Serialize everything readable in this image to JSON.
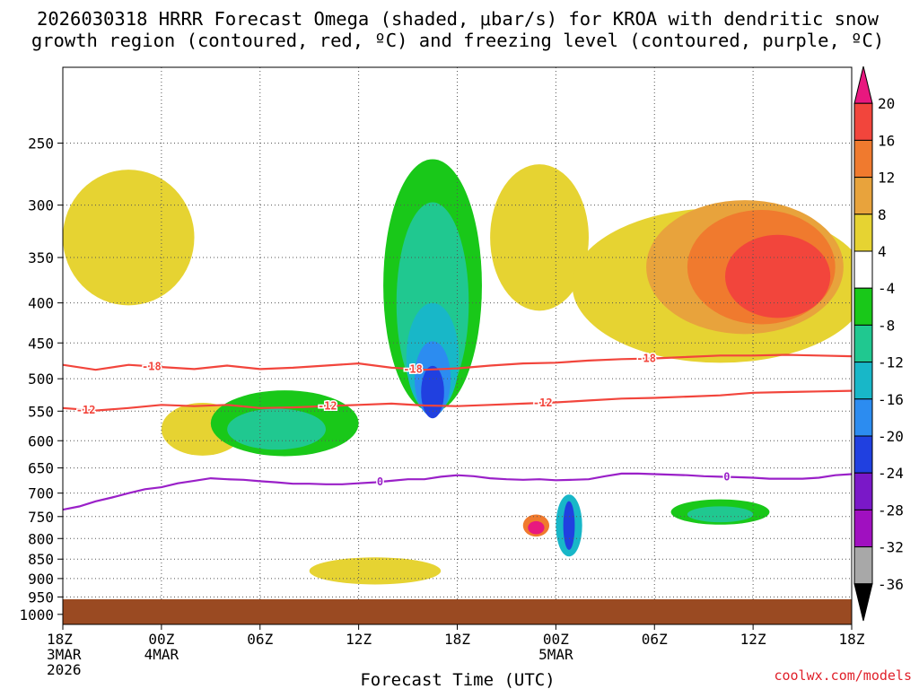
{
  "chart_data": {
    "type": "heatmap",
    "title_line1": "2026030318 HRRR Forecast Omega (shaded, μbar/s) for KROA with dendritic snow",
    "title_line2": "growth region (contoured, red, ºC) and freezing level (contoured, purple, ºC)",
    "xlabel": "Forecast Time (UTC)",
    "ylabel": "",
    "credit": "coolwx.com/models",
    "x_range_hours": [
      0,
      48
    ],
    "x_ticks": [
      {
        "hour": 0,
        "lines": [
          "18Z",
          "3MAR",
          "2026"
        ]
      },
      {
        "hour": 6,
        "lines": [
          "00Z",
          "4MAR"
        ]
      },
      {
        "hour": 12,
        "lines": [
          "06Z"
        ]
      },
      {
        "hour": 18,
        "lines": [
          "12Z"
        ]
      },
      {
        "hour": 24,
        "lines": [
          "18Z"
        ]
      },
      {
        "hour": 30,
        "lines": [
          "00Z",
          "5MAR"
        ]
      },
      {
        "hour": 36,
        "lines": [
          "06Z"
        ]
      },
      {
        "hour": 42,
        "lines": [
          "12Z"
        ]
      },
      {
        "hour": 48,
        "lines": [
          "18Z"
        ]
      }
    ],
    "y_axis": "pressure (hPa), log scale, inverted",
    "y_range": [
      200,
      1030
    ],
    "y_ticks": [
      250,
      300,
      350,
      400,
      450,
      500,
      550,
      600,
      650,
      700,
      750,
      800,
      850,
      900,
      950,
      1000
    ],
    "colorbar": {
      "labels": [
        "20",
        "16",
        "12",
        "8",
        "4",
        "-4",
        "-8",
        "-12",
        "-16",
        "-20",
        "-24",
        "-28",
        "-32",
        "-36"
      ],
      "bins": [
        {
          "range": "> 20",
          "color": "#e8187f"
        },
        {
          "range": "16 to 20",
          "color": "#f2453c"
        },
        {
          "range": "12 to 16",
          "color": "#f07a2e"
        },
        {
          "range": "8 to 12",
          "color": "#e8a33c"
        },
        {
          "range": "4 to 8",
          "color": "#e6d332"
        },
        {
          "range": "-4 to 4",
          "color": "#ffffff"
        },
        {
          "range": "-8 to -4",
          "color": "#19c819"
        },
        {
          "range": "-12 to -8",
          "color": "#20c890"
        },
        {
          "range": "-16 to -12",
          "color": "#18b7c8"
        },
        {
          "range": "-20 to -16",
          "color": "#2c8cf0"
        },
        {
          "range": "-24 to -20",
          "color": "#2040e0"
        },
        {
          "range": "-28 to -24",
          "color": "#7a18c8"
        },
        {
          "range": "-32 to -28",
          "color": "#a010c0"
        },
        {
          "range": "-36 to -32",
          "color": "#a8a8a8"
        },
        {
          "range": "< -36",
          "color": "#000000"
        }
      ]
    },
    "contours": [
      {
        "name": "dgz -18C",
        "label": "-18",
        "color": "#f2453c",
        "points": [
          [
            0,
            480
          ],
          [
            2,
            487
          ],
          [
            4,
            480
          ],
          [
            6,
            483
          ],
          [
            8,
            486
          ],
          [
            10,
            481
          ],
          [
            12,
            486
          ],
          [
            14,
            484
          ],
          [
            16,
            481
          ],
          [
            18,
            478
          ],
          [
            20,
            484
          ],
          [
            22,
            487
          ],
          [
            24,
            485
          ],
          [
            26,
            481
          ],
          [
            28,
            478
          ],
          [
            30,
            477
          ],
          [
            32,
            474
          ],
          [
            34,
            472
          ],
          [
            36,
            471
          ],
          [
            38,
            469
          ],
          [
            40,
            467
          ],
          [
            42,
            467
          ],
          [
            44,
            466
          ],
          [
            46,
            467
          ],
          [
            48,
            468
          ]
        ],
        "label_hours": [
          5.4,
          21.3,
          35.5
        ]
      },
      {
        "name": "dgz -12C",
        "label": "-12",
        "color": "#f2453c",
        "points": [
          [
            0,
            545
          ],
          [
            2,
            549
          ],
          [
            4,
            545
          ],
          [
            6,
            540
          ],
          [
            8,
            542
          ],
          [
            10,
            540
          ],
          [
            12,
            545
          ],
          [
            14,
            544
          ],
          [
            16,
            542
          ],
          [
            18,
            540
          ],
          [
            20,
            538
          ],
          [
            22,
            541
          ],
          [
            24,
            542
          ],
          [
            26,
            540
          ],
          [
            28,
            538
          ],
          [
            30,
            536
          ],
          [
            32,
            533
          ],
          [
            34,
            530
          ],
          [
            36,
            529
          ],
          [
            38,
            527
          ],
          [
            40,
            525
          ],
          [
            42,
            521
          ],
          [
            44,
            520
          ],
          [
            46,
            519
          ],
          [
            48,
            518
          ]
        ],
        "label_hours": [
          1.4,
          16.1,
          29.2
        ]
      },
      {
        "name": "freezing level 0C",
        "label": "0",
        "color": "#9a20c8",
        "points": [
          [
            0,
            735
          ],
          [
            1,
            728
          ],
          [
            2,
            717
          ],
          [
            3,
            709
          ],
          [
            4,
            700
          ],
          [
            5,
            692
          ],
          [
            6,
            688
          ],
          [
            7,
            680
          ],
          [
            8,
            675
          ],
          [
            9,
            670
          ],
          [
            10,
            672
          ],
          [
            11,
            673
          ],
          [
            12,
            676
          ],
          [
            13,
            678
          ],
          [
            14,
            681
          ],
          [
            15,
            681
          ],
          [
            16,
            682
          ],
          [
            17,
            682
          ],
          [
            18,
            680
          ],
          [
            19,
            678
          ],
          [
            20,
            675
          ],
          [
            21,
            672
          ],
          [
            22,
            672
          ],
          [
            23,
            667
          ],
          [
            24,
            664
          ],
          [
            25,
            666
          ],
          [
            26,
            670
          ],
          [
            27,
            672
          ],
          [
            28,
            673
          ],
          [
            29,
            672
          ],
          [
            30,
            674
          ],
          [
            31,
            673
          ],
          [
            32,
            672
          ],
          [
            33,
            666
          ],
          [
            34,
            661
          ],
          [
            35,
            661
          ],
          [
            36,
            662
          ],
          [
            37,
            663
          ],
          [
            38,
            664
          ],
          [
            39,
            666
          ],
          [
            40,
            667
          ],
          [
            41,
            668
          ],
          [
            42,
            669
          ],
          [
            43,
            671
          ],
          [
            44,
            671
          ],
          [
            45,
            671
          ],
          [
            46,
            669
          ],
          [
            47,
            664
          ],
          [
            48,
            662
          ]
        ],
        "label_hours": [
          19.3,
          40.4
        ]
      }
    ],
    "shaded_regions": [
      {
        "level": "4 to 8",
        "cx": 4,
        "p": 330,
        "rx": 4,
        "rh": 130
      },
      {
        "level": "4 to 8",
        "cx": 8.5,
        "p": 580,
        "rx": 2.5,
        "rh": 90
      },
      {
        "level": "4 to 8",
        "cx": 19,
        "p": 880,
        "rx": 4,
        "rh": 70
      },
      {
        "level": "4 to 8",
        "cx": 29,
        "p": 330,
        "rx": 3,
        "rh": 140
      },
      {
        "level": "4 to 8",
        "cx": 40,
        "p": 380,
        "rx": 9,
        "rh": 170
      },
      {
        "level": "8 to 12",
        "cx": 41.5,
        "p": 360,
        "rx": 6,
        "rh": 140
      },
      {
        "level": "12 to 16",
        "cx": 42.5,
        "p": 360,
        "rx": 4.5,
        "rh": 120
      },
      {
        "level": "16 to 20",
        "cx": 43.5,
        "p": 370,
        "rx": 3.2,
        "rh": 90
      },
      {
        "level": "-8 to -4",
        "cx": 22.5,
        "p": 380,
        "rx": 3,
        "rh": 270
      },
      {
        "level": "-12 to -8",
        "cx": 22.5,
        "p": 400,
        "rx": 2.2,
        "rh": 230
      },
      {
        "level": "-16 to -12",
        "cx": 22.5,
        "p": 470,
        "rx": 1.6,
        "rh": 150
      },
      {
        "level": "-20 to -16",
        "cx": 22.5,
        "p": 500,
        "rx": 1.1,
        "rh": 110
      },
      {
        "level": "-24 to -20",
        "cx": 22.5,
        "p": 520,
        "rx": 0.7,
        "rh": 80
      },
      {
        "level": "-8 to -4",
        "cx": 13.5,
        "p": 570,
        "rx": 4.5,
        "rh": 110
      },
      {
        "level": "-12 to -8",
        "cx": 13,
        "p": 580,
        "rx": 3,
        "rh": 70
      },
      {
        "level": "-8 to -4",
        "cx": 40,
        "p": 740,
        "rx": 3,
        "rh": 55
      },
      {
        "level": "-12 to -8",
        "cx": 40,
        "p": 745,
        "rx": 2,
        "rh": 35
      },
      {
        "level": "12 to 16",
        "cx": 28.8,
        "p": 770,
        "rx": 0.8,
        "rh": 50
      },
      {
        "level": "> 20",
        "cx": 28.8,
        "p": 775,
        "rx": 0.5,
        "rh": 30
      },
      {
        "level": "-16 to -12",
        "cx": 30.8,
        "p": 770,
        "rx": 0.8,
        "rh": 140
      },
      {
        "level": "-24 to -20",
        "cx": 30.8,
        "p": 770,
        "rx": 0.35,
        "rh": 110
      }
    ]
  }
}
